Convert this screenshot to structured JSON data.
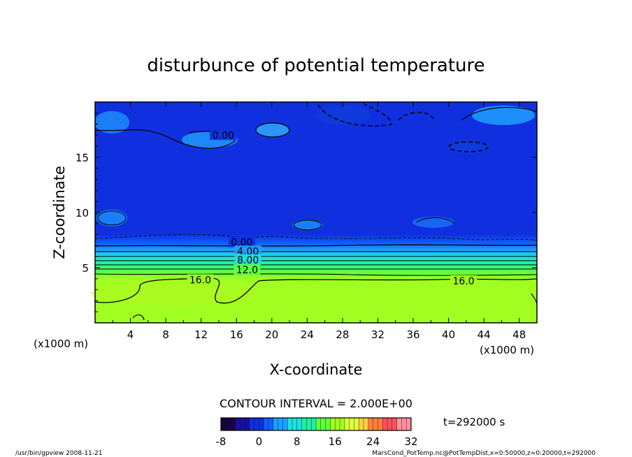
{
  "chart_data": {
    "type": "heatmap",
    "title": "disturbunce of potential temperature",
    "xlabel": "X-coordinate",
    "ylabel": "Z-coordinate",
    "x_unit": "(x1000 m)",
    "z_unit": "(x1000 m)",
    "xlim": [
      0,
      50
    ],
    "ylim": [
      0,
      20
    ],
    "x_ticks": [
      4,
      8,
      12,
      16,
      20,
      24,
      28,
      32,
      36,
      40,
      44,
      48
    ],
    "y_ticks": [
      5,
      10,
      15
    ],
    "contour_interval_label": "CONTOUR INTERVAL = 2.000E+00",
    "time_label": "t=292000 s",
    "colorbar": {
      "min": -8,
      "max": 32,
      "tick_labels": [
        "-8",
        "0",
        "8",
        "16",
        "24",
        "32"
      ],
      "colors": [
        "#1a0040",
        "#1a10a0",
        "#1030e0",
        "#1060ff",
        "#20a0ff",
        "#20e0e0",
        "#20f0a0",
        "#60ff40",
        "#a0ff20",
        "#e0ff40",
        "#ffd040",
        "#ff8040",
        "#ff5060",
        "#ff90a0"
      ]
    },
    "profile_by_height": [
      {
        "z": 0.0,
        "theta": 17.0
      },
      {
        "z": 4.0,
        "theta": 16.5
      },
      {
        "z": 4.6,
        "theta": 14.0
      },
      {
        "z": 5.4,
        "theta": 11.0
      },
      {
        "z": 6.0,
        "theta": 8.0
      },
      {
        "z": 6.6,
        "theta": 4.0
      },
      {
        "z": 7.2,
        "theta": 1.0
      },
      {
        "z": 8.0,
        "theta": -1.0
      },
      {
        "z": 20.0,
        "theta": -1.5
      }
    ],
    "contour_labels": [
      {
        "text": "0.00",
        "x": 14.5,
        "z": 17.0
      },
      {
        "text": "0.00",
        "x": 16.6,
        "z": 7.3
      },
      {
        "text": "4.00",
        "x": 17.3,
        "z": 6.5
      },
      {
        "text": "8.00",
        "x": 17.3,
        "z": 5.7
      },
      {
        "text": "12.0",
        "x": 17.2,
        "z": 4.8
      },
      {
        "text": "16.0",
        "x": 11.9,
        "z": 3.9
      },
      {
        "text": "16.0",
        "x": 41.7,
        "z": 3.8
      }
    ]
  },
  "footer": {
    "left": "/usr/bin/gpview   2008-11-21",
    "right": "MarsCond_PotTemp.nc@PotTempDist,x=0:50000,z=0:20000,t=292000"
  }
}
